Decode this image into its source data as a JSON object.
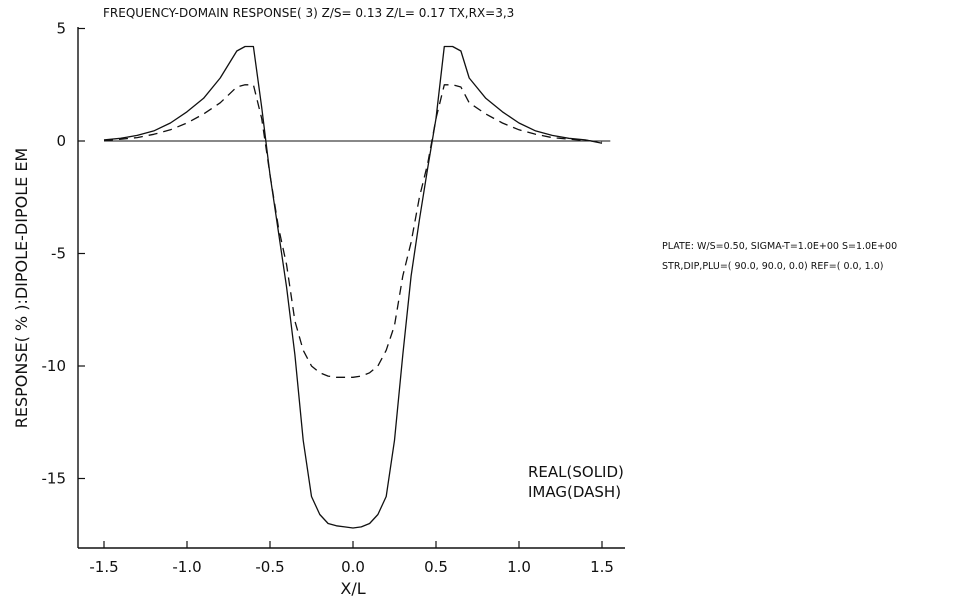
{
  "header": {
    "title": "FREQUENCY-DOMAIN   RESPONSE( 3)   Z/S= 0.13   Z/L= 0.17   TX,RX=3,3"
  },
  "side_notes": {
    "line1": "PLATE:  W/S=0.50,  SIGMA-T=1.0E+00  S=1.0E+00",
    "line2": "STR,DIP,PLU=(  90.0,  90.0,   0.0)   REF=(  0.0,  1.0)"
  },
  "legend": {
    "real": "REAL(SOLID)",
    "imag": "IMAG(DASH)"
  },
  "chart_data": {
    "type": "line",
    "title": "FREQUENCY-DOMAIN   RESPONSE( 3)   Z/S= 0.13   Z/L= 0.17   TX,RX=3,3",
    "xlabel": "X/L",
    "ylabel": "RESPONSE(  %  ):DIPOLE-DIPOLE  EM",
    "xlim": [
      -1.7,
      1.7
    ],
    "ylim": [
      -18,
      5.5
    ],
    "x_ticks": [
      -1.5,
      -1.0,
      -0.5,
      0.0,
      0.5,
      1.0,
      1.5
    ],
    "x_tick_labels": [
      "-1.5",
      "-1.0",
      "-0.5",
      "0.0",
      "0.5",
      "1.0",
      "1.5"
    ],
    "y_ticks": [
      5,
      0,
      -5,
      -10,
      -15
    ],
    "y_tick_labels": [
      "5",
      "0",
      "-5",
      "-10",
      "-15"
    ],
    "grid": false,
    "legend_position": "bottom-right",
    "zero_line": true,
    "series": [
      {
        "name": "REAL(SOLID)",
        "style": "solid",
        "x": [
          -1.5,
          -1.4,
          -1.3,
          -1.2,
          -1.1,
          -1.0,
          -0.9,
          -0.8,
          -0.7,
          -0.65,
          -0.6,
          -0.55,
          -0.5,
          -0.45,
          -0.4,
          -0.35,
          -0.3,
          -0.25,
          -0.2,
          -0.15,
          -0.1,
          -0.05,
          0.0,
          0.05,
          0.1,
          0.15,
          0.2,
          0.25,
          0.3,
          0.35,
          0.4,
          0.45,
          0.5,
          0.55,
          0.6,
          0.65,
          0.7,
          0.8,
          0.9,
          1.0,
          1.1,
          1.2,
          1.3,
          1.4,
          1.5
        ],
        "y": [
          0.05,
          0.12,
          0.25,
          0.45,
          0.8,
          1.3,
          1.9,
          2.8,
          4.0,
          4.2,
          4.2,
          1.5,
          -1.5,
          -4.0,
          -6.5,
          -9.5,
          -13.3,
          -15.8,
          -16.6,
          -17.0,
          -17.1,
          -17.15,
          -17.2,
          -17.15,
          -17.0,
          -16.6,
          -15.8,
          -13.3,
          -9.5,
          -6.0,
          -3.5,
          -1.2,
          1.0,
          4.2,
          4.2,
          4.0,
          2.8,
          1.9,
          1.3,
          0.8,
          0.45,
          0.25,
          0.12,
          0.05,
          -0.1
        ]
      },
      {
        "name": "IMAG(DASH)",
        "style": "dashed",
        "x": [
          -1.5,
          -1.4,
          -1.3,
          -1.2,
          -1.1,
          -1.0,
          -0.9,
          -0.8,
          -0.7,
          -0.65,
          -0.6,
          -0.55,
          -0.5,
          -0.45,
          -0.4,
          -0.35,
          -0.3,
          -0.25,
          -0.2,
          -0.15,
          -0.1,
          -0.05,
          0.0,
          0.05,
          0.1,
          0.15,
          0.2,
          0.25,
          0.3,
          0.35,
          0.4,
          0.45,
          0.5,
          0.55,
          0.6,
          0.65,
          0.7,
          0.8,
          0.9,
          1.0,
          1.1,
          1.2,
          1.3,
          1.4,
          1.5
        ],
        "y": [
          0.03,
          0.08,
          0.15,
          0.3,
          0.5,
          0.8,
          1.2,
          1.7,
          2.4,
          2.5,
          2.5,
          1.0,
          -1.5,
          -3.8,
          -5.5,
          -8.0,
          -9.3,
          -10.0,
          -10.3,
          -10.45,
          -10.5,
          -10.5,
          -10.5,
          -10.45,
          -10.3,
          -10.0,
          -9.3,
          -8.2,
          -6.0,
          -4.5,
          -2.5,
          -1.0,
          1.0,
          2.5,
          2.5,
          2.4,
          1.7,
          1.2,
          0.8,
          0.5,
          0.3,
          0.15,
          0.08,
          0.03,
          -0.05
        ]
      }
    ]
  }
}
